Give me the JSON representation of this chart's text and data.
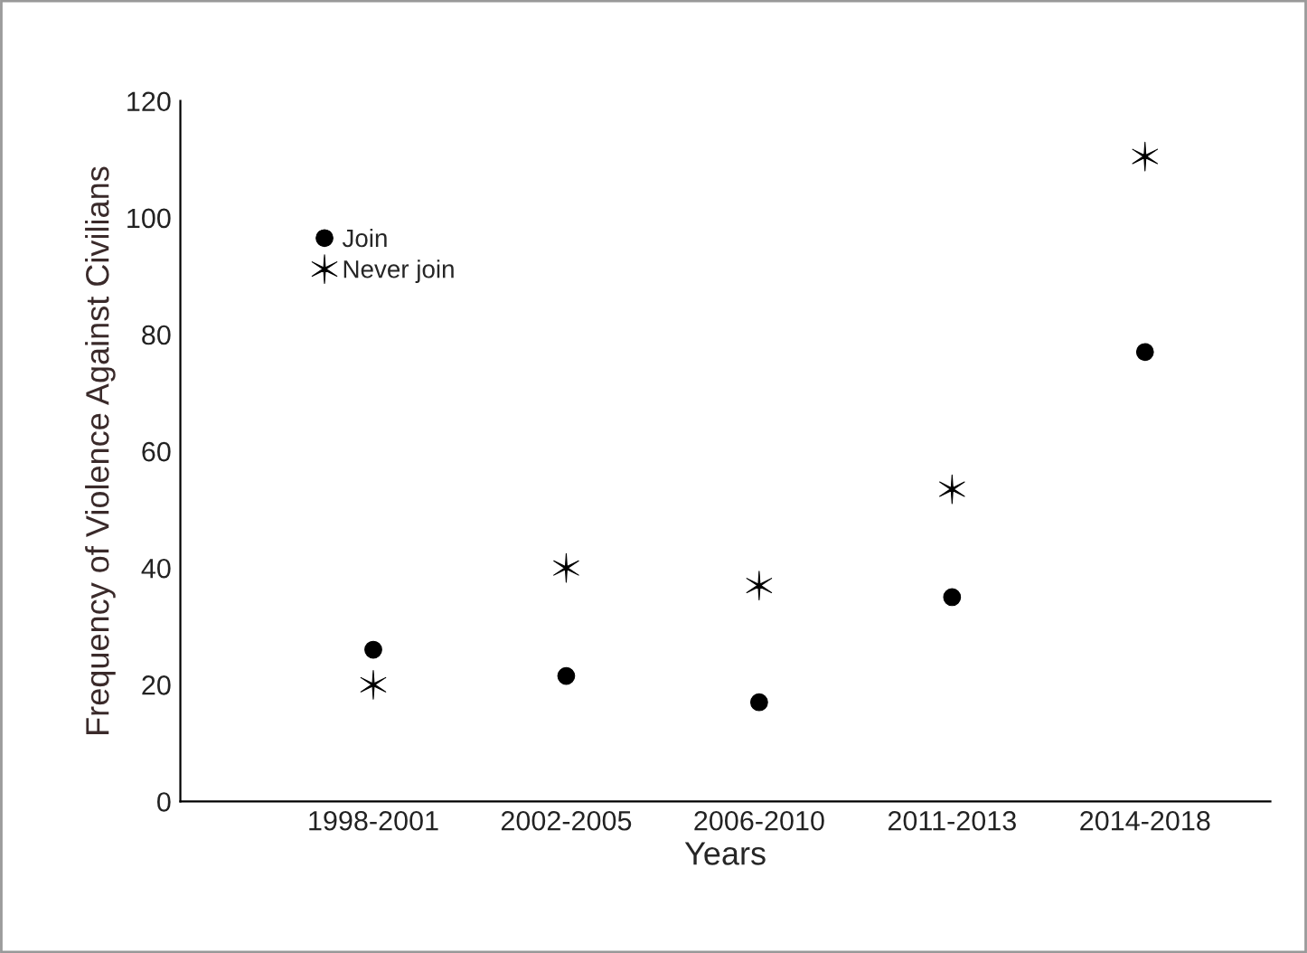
{
  "chart_data": {
    "type": "scatter",
    "xlabel": "Years",
    "ylabel": "Frequency of Violence Against Civilians",
    "categories": [
      "1998-2001",
      "2002-2005",
      "2006-2010",
      "2011-2013",
      "2014-2018"
    ],
    "series": [
      {
        "name": "Join",
        "color": "#000000",
        "marker": "circle",
        "values": [
          26,
          21.5,
          17,
          35,
          77
        ]
      },
      {
        "name": "Never join",
        "color": "#000000",
        "marker": "cross",
        "values": [
          20,
          40,
          37,
          53.5,
          110.5
        ]
      }
    ],
    "ylim": [
      0,
      120
    ],
    "yticks": [
      0,
      20,
      40,
      60,
      80,
      100,
      120
    ],
    "grid": false,
    "legend": "top left"
  }
}
